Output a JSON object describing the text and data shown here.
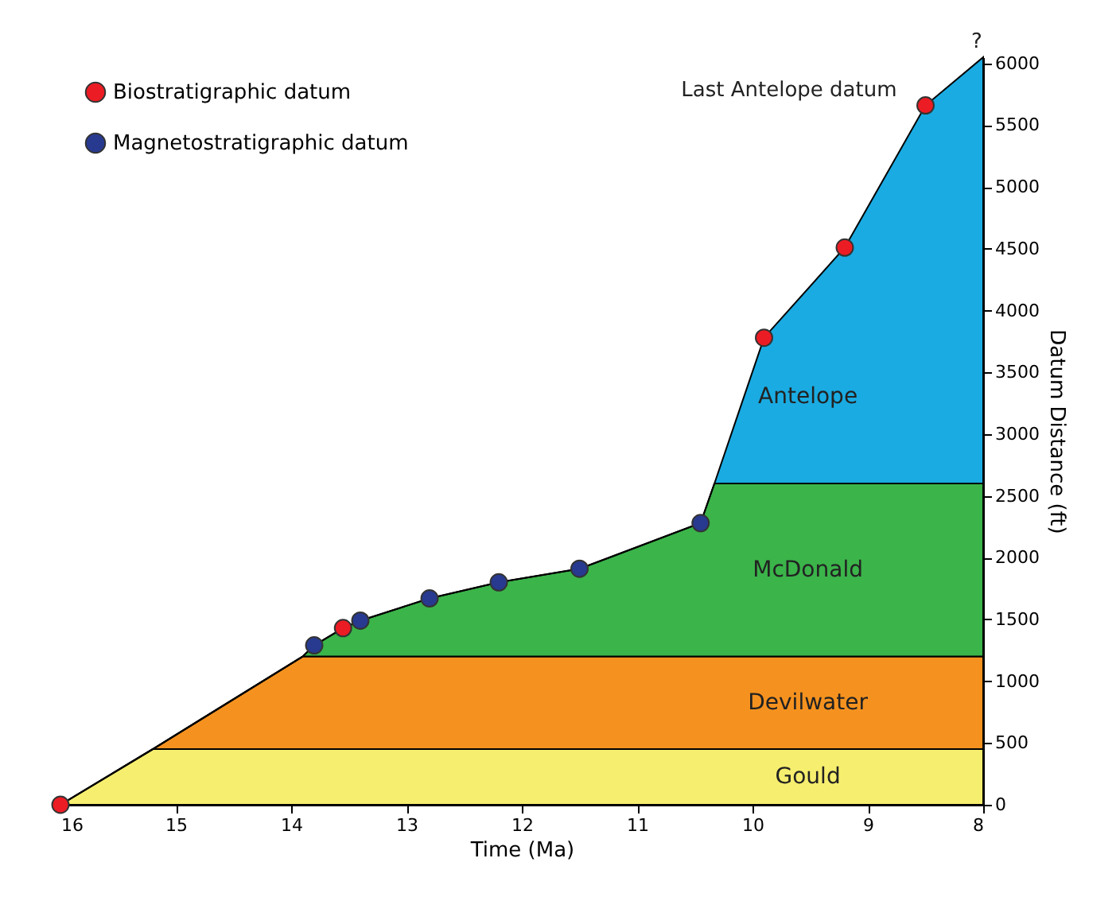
{
  "chart_data": {
    "type": "area",
    "stacked": true,
    "xlabel": "Time (Ma)",
    "ylabel": "Datum Distance (ft)",
    "x": [
      16,
      15.2,
      13.9,
      13.8,
      13.55,
      13.4,
      12.8,
      12.2,
      11.5,
      10.45,
      10.33,
      9.9,
      9.2,
      8.5,
      8
    ],
    "series": [
      {
        "name": "Gould",
        "color": "#f6ee6e",
        "values": [
          0,
          450,
          450,
          450,
          450,
          450,
          450,
          450,
          450,
          450,
          450,
          450,
          450,
          450,
          450
        ]
      },
      {
        "name": "Devilwater",
        "color": "#f5921f",
        "values": [
          0,
          0,
          750,
          750,
          750,
          750,
          750,
          750,
          750,
          750,
          750,
          750,
          750,
          750,
          750
        ]
      },
      {
        "name": "McDonald",
        "color": "#3bb44a",
        "values": [
          0,
          0,
          0,
          90,
          230,
          290,
          470,
          600,
          710,
          1080,
          1400,
          1400,
          1400,
          1400,
          1400
        ]
      },
      {
        "name": "Antelope",
        "color": "#1aabe2",
        "values": [
          0,
          0,
          0,
          0,
          0,
          0,
          0,
          0,
          0,
          0,
          0,
          1180,
          1910,
          3060,
          3450
        ]
      },
      {
        "name": "Biostratigraphic datum",
        "type": "scatter",
        "marker": "circle",
        "color": "#ec1c24",
        "x": [
          16,
          13.55,
          9.9,
          9.2,
          8.5
        ],
        "values": [
          0,
          1430,
          3780,
          4510,
          5660
        ]
      },
      {
        "name": "Magnetostratigraphic datum",
        "type": "scatter",
        "marker": "circle",
        "color": "#273a8f",
        "x": [
          13.8,
          13.4,
          12.8,
          12.2,
          11.5,
          10.45
        ],
        "values": [
          1290,
          1490,
          1670,
          1800,
          1910,
          2280
        ]
      }
    ],
    "xlim": [
      16,
      8
    ],
    "xticks": [
      16,
      15,
      14,
      13,
      12,
      11,
      10,
      9,
      8
    ],
    "ylim": [
      0,
      6050
    ],
    "yticks": [
      0,
      500,
      1000,
      1500,
      2000,
      2500,
      3000,
      3500,
      4000,
      4500,
      5000,
      5500,
      6000
    ],
    "annotations": [
      {
        "text": "Last Antelope datum",
        "x": 8.5,
        "y": 5660
      },
      {
        "text": "?",
        "x": 8,
        "y": 6050
      }
    ],
    "legend": "top left",
    "grid": false
  }
}
